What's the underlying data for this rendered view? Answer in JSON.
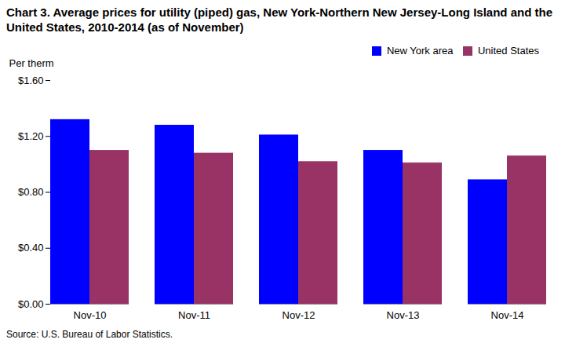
{
  "chart_data": {
    "type": "bar",
    "title": "Chart 3. Average prices for utility (piped) gas, New York-Northern New Jersey-Long Island and the United States, 2010-2014 (as of November)",
    "ylabel": "Per therm",
    "source": "Source: U.S. Bureau of Labor Statistics.",
    "categories": [
      "Nov-10",
      "Nov-11",
      "Nov-12",
      "Nov-13",
      "Nov-14"
    ],
    "series": [
      {
        "name": "New York area",
        "color": "#0000FF",
        "values": [
          1.32,
          1.28,
          1.21,
          1.1,
          0.89
        ]
      },
      {
        "name": "United States",
        "color": "#993366",
        "values": [
          1.1,
          1.08,
          1.02,
          1.01,
          1.06
        ]
      }
    ],
    "ylim": [
      0,
      1.6
    ],
    "yticks": [
      {
        "value": 0.0,
        "label": "$0.00"
      },
      {
        "value": 0.4,
        "label": "$0.40"
      },
      {
        "value": 0.8,
        "label": "$0.80"
      },
      {
        "value": 1.2,
        "label": "$1.20"
      },
      {
        "value": 1.6,
        "label": "$1.60"
      }
    ],
    "grid": false,
    "legend": "upper right"
  }
}
